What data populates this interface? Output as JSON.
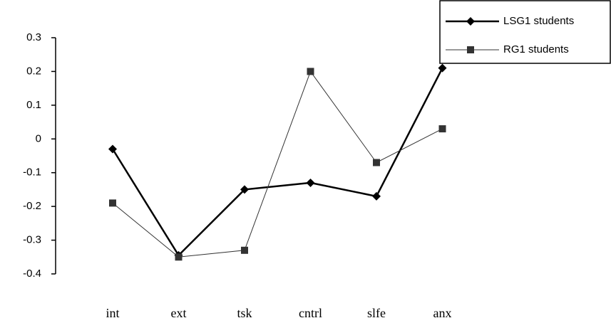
{
  "chart_data": {
    "type": "line",
    "categories": [
      "int",
      "ext",
      "tsk",
      "cntrl",
      "slfe",
      "anx"
    ],
    "series": [
      {
        "name": "LSG1 students",
        "color": "#000000",
        "marker": "diamond",
        "values": [
          -0.03,
          -0.345,
          -0.15,
          -0.13,
          -0.17,
          0.21
        ]
      },
      {
        "name": "RG1 students",
        "color": "#333333",
        "marker": "square",
        "values": [
          -0.19,
          -0.35,
          -0.33,
          0.2,
          -0.07,
          0.03
        ]
      }
    ],
    "ylim": [
      -0.4,
      0.3
    ],
    "yticks": [
      0.3,
      0.2,
      0.1,
      0,
      -0.1,
      -0.2,
      -0.3,
      -0.4
    ],
    "grid": false,
    "legend": "top-right"
  }
}
